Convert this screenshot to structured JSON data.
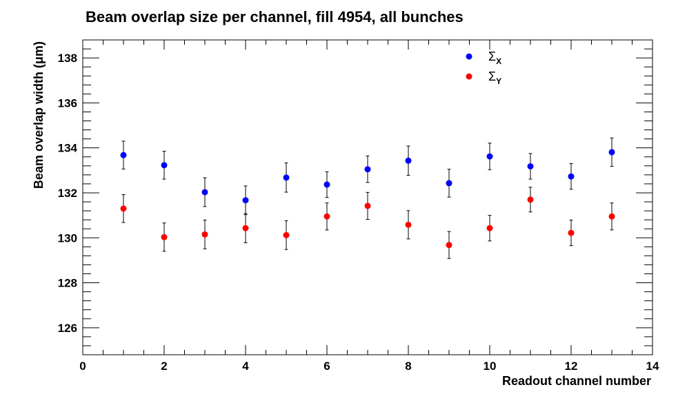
{
  "chart_data": {
    "type": "scatter",
    "title": "Beam overlap size per channel, fill 4954, all bunches",
    "xlabel": "Readout channel number",
    "ylabel": "Beam overlap width (μm)",
    "xlim": [
      0,
      14
    ],
    "ylim": [
      124.8,
      138.8
    ],
    "x_ticks": [
      0,
      2,
      4,
      6,
      8,
      10,
      12,
      14
    ],
    "y_ticks": [
      126,
      128,
      130,
      132,
      134,
      136,
      138
    ],
    "x_tick_labels": [
      "0",
      "2",
      "4",
      "6",
      "8",
      "10",
      "12",
      "14"
    ],
    "y_tick_labels": [
      "126",
      "128",
      "130",
      "132",
      "134",
      "136",
      "138"
    ],
    "grid": false,
    "legend_position": "top-right",
    "series": [
      {
        "name": "Σ",
        "subscript": "X",
        "color": "#0000ff",
        "x": [
          1,
          2,
          3,
          4,
          5,
          6,
          7,
          8,
          9,
          10,
          11,
          12,
          13
        ],
        "y": [
          133.68,
          133.23,
          132.03,
          131.67,
          132.68,
          132.37,
          133.05,
          133.43,
          132.43,
          133.62,
          133.18,
          132.73,
          133.81
        ],
        "err": [
          0.62,
          0.62,
          0.64,
          0.64,
          0.65,
          0.57,
          0.59,
          0.65,
          0.62,
          0.59,
          0.57,
          0.57,
          0.63
        ]
      },
      {
        "name": "Σ",
        "subscript": "Y",
        "color": "#ff0000",
        "x": [
          1,
          2,
          3,
          4,
          5,
          6,
          7,
          8,
          9,
          10,
          11,
          12,
          13
        ],
        "y": [
          131.3,
          130.03,
          130.15,
          130.43,
          130.12,
          130.95,
          131.42,
          130.58,
          129.68,
          130.43,
          131.7,
          130.22,
          130.95
        ],
        "err": [
          0.62,
          0.63,
          0.64,
          0.65,
          0.64,
          0.6,
          0.6,
          0.63,
          0.6,
          0.57,
          0.55,
          0.57,
          0.6
        ]
      }
    ]
  }
}
